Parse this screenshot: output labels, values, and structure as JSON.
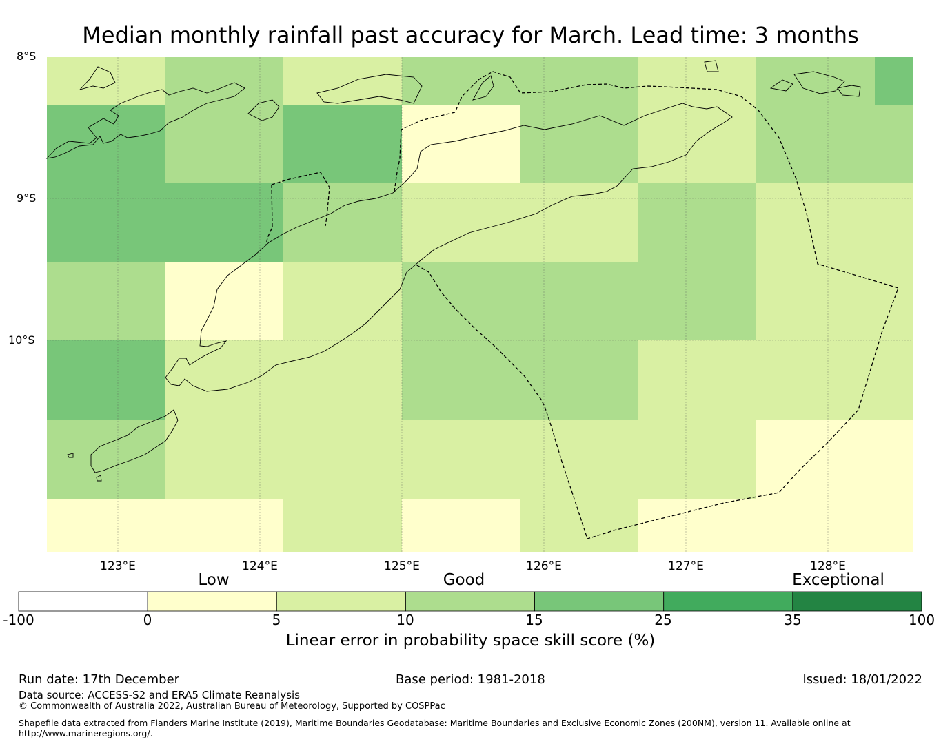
{
  "title": "Median monthly rainfall past accuracy for March. Lead time: 3 months",
  "map": {
    "lat_labels": [
      "8°S",
      "9°S",
      "10°S"
    ],
    "lon_labels": [
      "123°E",
      "124°E",
      "125°E",
      "126°E",
      "127°E",
      "128°E"
    ],
    "grid_rows": [
      [
        2,
        3,
        2,
        3,
        3,
        2,
        3,
        4
      ],
      [
        4,
        3,
        4,
        1,
        3,
        2,
        3,
        3
      ],
      [
        4,
        4,
        3,
        2,
        2,
        3,
        2,
        2
      ],
      [
        3,
        1,
        2,
        3,
        3,
        3,
        2,
        2
      ],
      [
        4,
        2,
        2,
        3,
        3,
        2,
        2,
        2
      ],
      [
        3,
        2,
        2,
        2,
        2,
        2,
        1,
        1
      ],
      [
        1,
        1,
        2,
        1,
        2,
        1,
        1,
        1
      ]
    ]
  },
  "legend": {
    "category_labels": [
      "Low",
      "Good",
      "Exceptional"
    ],
    "ticks": [
      "-100",
      "0",
      "5",
      "10",
      "15",
      "25",
      "35",
      "100"
    ],
    "colors": [
      "#ffffff",
      "#ffffcc",
      "#d9f0a3",
      "#addd8e",
      "#78c679",
      "#41ab5d",
      "#238443"
    ],
    "label": "Linear error in probability space skill score (%)"
  },
  "footer": {
    "run_date": "Run date: 17th December",
    "base_period": "Base period: 1981-2018",
    "issued": "Issued: 18/01/2022",
    "data_source": "Data source: ACCESS-S2 and ERA5 Climate Reanalysis",
    "copyright": "© Commonwealth of Australia 2022, Australian Bureau of Meteorology, Supported by COSPPac",
    "shapefile_line1": "Shapefile data extracted from Flanders Marine Institute (2019), Maritime Boundaries Geodatabase: Maritime Boundaries and Exclusive Economic Zones (200NM), version 11. Available online at",
    "shapefile_line2": "http://www.marineregions.org/."
  }
}
